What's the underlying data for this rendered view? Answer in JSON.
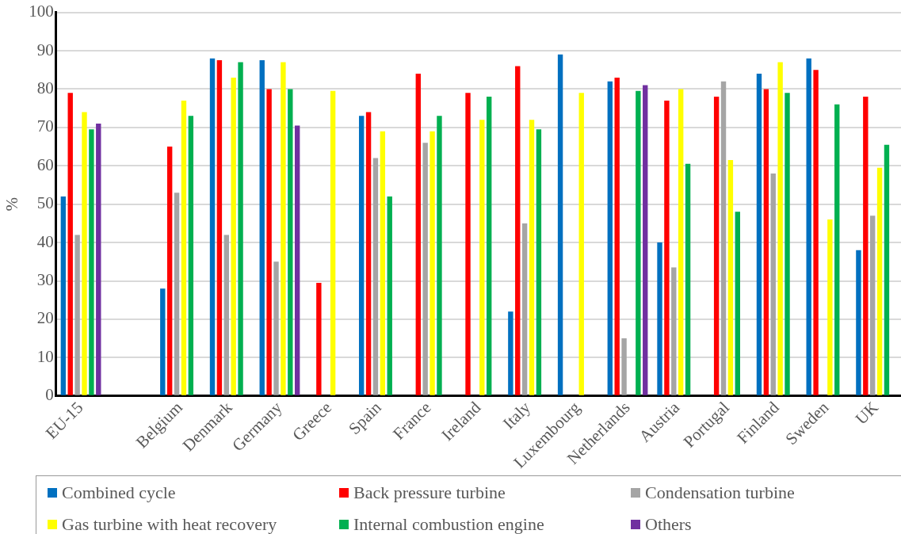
{
  "chart_data": {
    "type": "bar",
    "ylabel": "%",
    "categories": [
      "EU-15",
      null,
      "Belgium",
      "Denmark",
      "Germany",
      "Greece",
      "Spain",
      "France",
      "Ireland",
      "Italy",
      "Luxembourg",
      "Netherlands",
      "Austria",
      "Portugal",
      "Finland",
      "Sweden",
      "UK"
    ],
    "series": [
      {
        "name": "Combined cycle",
        "color": "#0070c0",
        "values": [
          52,
          null,
          28,
          88,
          87.5,
          null,
          73,
          null,
          null,
          22,
          89,
          82,
          40,
          null,
          84,
          88,
          38
        ]
      },
      {
        "name": "Back pressure turbine",
        "color": "#ff0000",
        "values": [
          79,
          null,
          65,
          87.5,
          80,
          29.5,
          74,
          84,
          79,
          86,
          null,
          83,
          77,
          78,
          80,
          85,
          78
        ]
      },
      {
        "name": "Condensation turbine",
        "color": "#a5a5a5",
        "values": [
          42,
          null,
          53,
          42,
          35,
          null,
          62,
          66,
          null,
          45,
          null,
          15,
          33.5,
          82,
          58,
          null,
          47
        ]
      },
      {
        "name": "Gas turbine with heat recovery",
        "color": "#ffff00",
        "values": [
          74,
          null,
          77,
          83,
          87,
          79.5,
          69,
          69,
          72,
          72,
          79,
          null,
          80,
          61.5,
          87,
          46,
          59.5
        ]
      },
      {
        "name": "Internal combustion engine",
        "color": "#00b050",
        "values": [
          69.5,
          null,
          73,
          87,
          80,
          null,
          52,
          73,
          78,
          69.5,
          null,
          79.5,
          60.5,
          48,
          79,
          76,
          65.5
        ]
      },
      {
        "name": "Others",
        "color": "#7030a0",
        "values": [
          71,
          null,
          null,
          null,
          70.5,
          null,
          null,
          null,
          null,
          null,
          null,
          81,
          null,
          null,
          null,
          null,
          null
        ]
      }
    ],
    "ylim": [
      0,
      100
    ],
    "yticks": [
      0,
      10,
      20,
      30,
      40,
      50,
      60,
      70,
      80,
      90,
      100
    ],
    "grid": "y",
    "legend": "bottom"
  }
}
